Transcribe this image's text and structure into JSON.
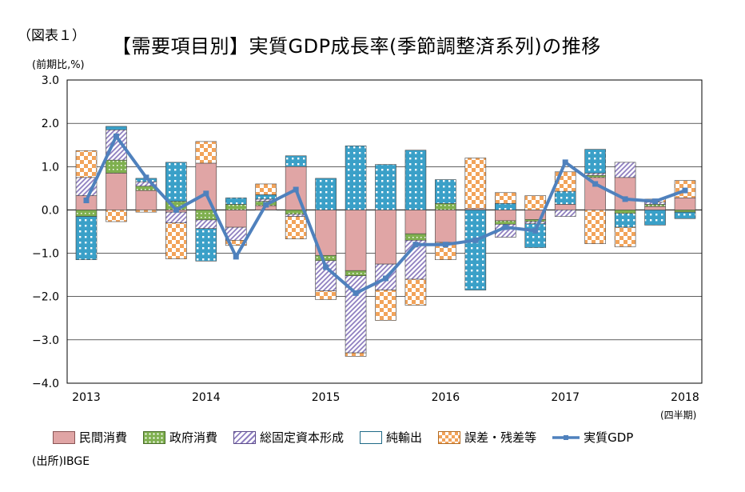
{
  "figure_label": "（図表１）",
  "colors": {
    "consumption": "#e0a5a5",
    "government": "#7fb04f",
    "investment": "#8f7fc0",
    "net_exports": "#3aa0c8",
    "errors": "#f2a35a",
    "gdp_line": "#4f81bd"
  },
  "chart_data": {
    "type": "bar",
    "stacked": true,
    "title": "【需要項目別】実質GDP成長率(季節調整済系列)の推移",
    "ylabel": "(前期比,%)",
    "xlabel": "(四半期)",
    "ylim": [
      -4.0,
      3.0
    ],
    "yticks": [
      "3.0",
      "2.0",
      "1.0",
      "0.0",
      "−1.0",
      "−2.0",
      "−3.0",
      "−4.0"
    ],
    "xtick_labels": [
      "2013",
      "2014",
      "2015",
      "2016",
      "2017",
      "2018"
    ],
    "categories": [
      "2013Q1",
      "2013Q2",
      "2013Q3",
      "2013Q4",
      "2014Q1",
      "2014Q2",
      "2014Q3",
      "2014Q4",
      "2015Q1",
      "2015Q2",
      "2015Q3",
      "2015Q4",
      "2016Q1",
      "2016Q2",
      "2016Q3",
      "2016Q4",
      "2017Q1",
      "2017Q2",
      "2017Q3",
      "2017Q4",
      "2018Q1"
    ],
    "series": [
      {
        "name": "民間消費",
        "key": "consumption",
        "values": [
          0.33,
          0.85,
          0.45,
          -0.05,
          1.08,
          -0.4,
          0.1,
          1.0,
          -1.05,
          -1.4,
          -1.25,
          -0.55,
          -0.75,
          0.03,
          -0.25,
          -0.22,
          0.13,
          0.75,
          0.75,
          0.08,
          0.28
        ]
      },
      {
        "name": "政府消費",
        "key": "government",
        "values": [
          -0.15,
          0.3,
          0.1,
          0.2,
          -0.23,
          0.13,
          0.1,
          -0.1,
          -0.12,
          -0.12,
          0.0,
          -0.15,
          0.15,
          0.0,
          -0.08,
          -0.05,
          0.0,
          0.05,
          -0.08,
          0.05,
          -0.05
        ]
      },
      {
        "name": "総固定資本形成",
        "key": "investment",
        "values": [
          0.42,
          0.7,
          0.1,
          -0.25,
          -0.2,
          -0.3,
          0.05,
          -0.05,
          -0.7,
          -1.78,
          -0.6,
          -0.9,
          0.0,
          0.0,
          -0.3,
          -0.05,
          -0.15,
          0.05,
          0.35,
          0.05,
          0.0
        ]
      },
      {
        "name": "純輸出",
        "key": "net_exports",
        "values": [
          -1.0,
          0.08,
          0.08,
          0.9,
          -0.75,
          0.15,
          0.1,
          0.25,
          0.73,
          1.48,
          1.05,
          1.38,
          0.55,
          -1.85,
          0.15,
          -0.55,
          0.3,
          0.55,
          -0.32,
          -0.35,
          -0.15
        ]
      },
      {
        "name": "誤差・残差等",
        "key": "errors",
        "values": [
          0.62,
          -0.27,
          -0.05,
          -0.83,
          0.5,
          -0.12,
          0.25,
          -0.52,
          -0.2,
          -0.08,
          -0.7,
          -0.6,
          -0.4,
          1.17,
          0.25,
          0.33,
          0.45,
          -0.78,
          -0.45,
          0.07,
          0.4
        ]
      }
    ],
    "line": {
      "name": "実質GDP",
      "values": [
        0.22,
        1.7,
        0.75,
        0.0,
        0.38,
        -1.08,
        0.12,
        0.47,
        -1.32,
        -1.92,
        -1.58,
        -0.8,
        -0.8,
        -0.7,
        -0.4,
        -0.48,
        1.1,
        0.6,
        0.25,
        0.2,
        0.45
      ]
    }
  },
  "legend": {
    "items": [
      {
        "key": "consumption",
        "label": "民間消費"
      },
      {
        "key": "government",
        "label": "政府消費"
      },
      {
        "key": "investment",
        "label": "総固定資本形成"
      },
      {
        "key": "net_exports",
        "label": "純輸出"
      },
      {
        "key": "errors",
        "label": "誤差・残差等"
      }
    ],
    "line_label": "実質GDP"
  },
  "source": "(出所)IBGE"
}
